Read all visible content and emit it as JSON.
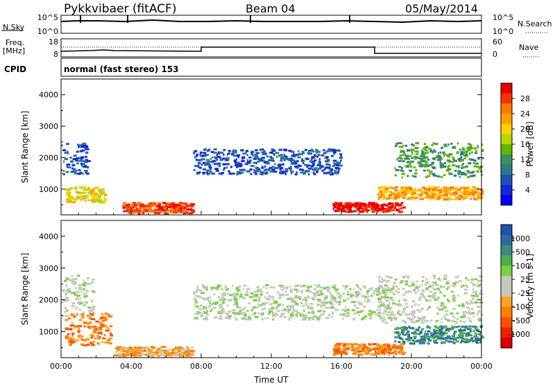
{
  "header": {
    "station": "Pykkvibaer (fitACF)",
    "beam": "Beam 04",
    "date": "05/May/2014"
  },
  "noise_panel": {
    "left_label": "N.Sky",
    "left_ticks": [
      "10^5",
      "10^0"
    ],
    "right_label": "N.Search",
    "right_ticks": [
      "10^5",
      "10^0"
    ]
  },
  "freq_panel": {
    "left_label_1": "Freq.",
    "left_label_2": "[MHz]",
    "left_ticks": [
      "18",
      "8"
    ],
    "right_label": "Nave",
    "right_ticks": [
      "60",
      "0"
    ]
  },
  "cpid": {
    "label": "CPID",
    "mode": "normal (fast stereo) 153"
  },
  "chart_data": [
    {
      "type": "heatmap",
      "name": "power",
      "ylabel": "Slant Range [km]",
      "xlabel": "Time UT",
      "ylim": [
        180,
        4500
      ],
      "xlim": [
        0,
        24
      ],
      "y_ticks": [
        1000,
        2000,
        3000,
        4000
      ],
      "x_ticks": [
        "00:00",
        "04:00",
        "08:00",
        "12:00",
        "16:00",
        "20:00",
        "00:00"
      ],
      "colorbar": {
        "label": "Power [dB]",
        "ticks": [
          "28",
          "24",
          "20",
          "16",
          "12",
          "8",
          "4"
        ],
        "colors": [
          "#e80000",
          "#ff3000",
          "#ff7800",
          "#ffa000",
          "#ffd000",
          "#b6d800",
          "#64b400",
          "#3c9060",
          "#2e7a8a",
          "#2050b4",
          "#1428dc",
          "#0000ff"
        ]
      },
      "regions": [
        {
          "t": [
            0.0,
            1.5
          ],
          "r": [
            1500,
            2500
          ],
          "level": 9
        },
        {
          "t": [
            0.2,
            2.5
          ],
          "r": [
            600,
            1100
          ],
          "level": 4
        },
        {
          "t": [
            3.5,
            7.5
          ],
          "r": [
            250,
            600
          ],
          "level": 1
        },
        {
          "t": [
            7.5,
            16.0
          ],
          "r": [
            1500,
            2300
          ],
          "level": 9
        },
        {
          "t": [
            15.5,
            19.5
          ],
          "r": [
            300,
            600
          ],
          "level": 0
        },
        {
          "t": [
            18.0,
            24.0
          ],
          "r": [
            700,
            1100
          ],
          "level": 3
        },
        {
          "t": [
            19.0,
            24.0
          ],
          "r": [
            1400,
            2500
          ],
          "level": 7
        }
      ]
    },
    {
      "type": "heatmap",
      "name": "velocity",
      "ylabel": "Slant Range [km]",
      "xlabel": "Time UT",
      "ylim": [
        180,
        4500
      ],
      "xlim": [
        0,
        24
      ],
      "y_ticks": [
        1000,
        2000,
        3000,
        4000
      ],
      "x_ticks": [
        "00:00",
        "04:00",
        "08:00",
        "12:00",
        "16:00",
        "20:00",
        "00:00"
      ],
      "colorbar": {
        "label": "Velocity [m s-1]",
        "ticks": [
          "1000",
          "500",
          "100",
          "25",
          "-25",
          "-100",
          "-500",
          "-1000"
        ],
        "colors": [
          "#2050b0",
          "#2e6aa0",
          "#3c8a7c",
          "#4cb050",
          "#7ad048",
          "#c8c8c0",
          "#c8c8c0",
          "#ffa020",
          "#ff8000",
          "#ff5000",
          "#f02000",
          "#d80000"
        ]
      },
      "regions": [
        {
          "t": [
            0.0,
            1.8
          ],
          "r": [
            1500,
            2800
          ],
          "level": 5
        },
        {
          "t": [
            0.2,
            2.8
          ],
          "r": [
            600,
            1600
          ],
          "level": 8
        },
        {
          "t": [
            3.0,
            7.5
          ],
          "r": [
            250,
            550
          ],
          "level": 7
        },
        {
          "t": [
            7.5,
            19.0
          ],
          "r": [
            1400,
            2500
          ],
          "level": 5
        },
        {
          "t": [
            15.5,
            19.5
          ],
          "r": [
            300,
            650
          ],
          "level": 8
        },
        {
          "t": [
            18.0,
            24.0
          ],
          "r": [
            1300,
            2800
          ],
          "level": 5
        },
        {
          "t": [
            19.0,
            24.0
          ],
          "r": [
            650,
            1200
          ],
          "level": 2
        }
      ]
    }
  ]
}
